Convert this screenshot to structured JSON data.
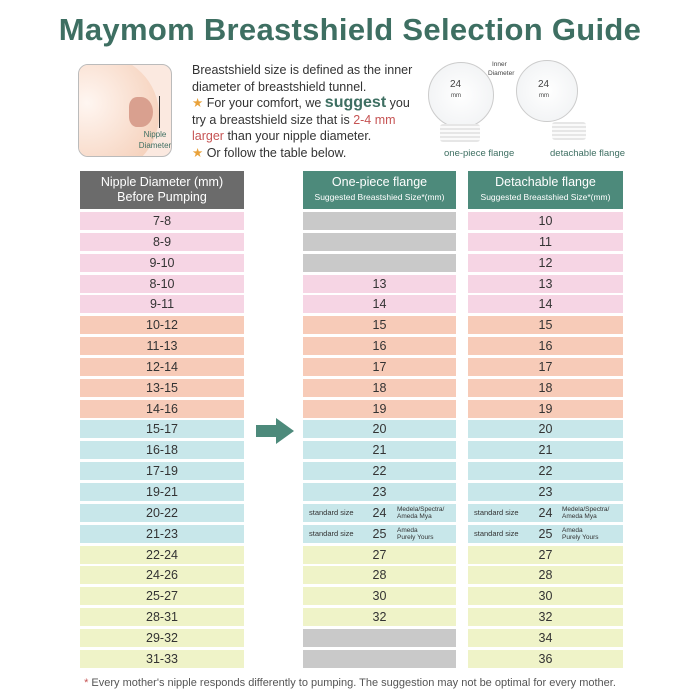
{
  "title": "Maymom Breastshield Selection Guide",
  "illustration": {
    "label_line1": "Nipple",
    "label_line2": "Diameter"
  },
  "intro": {
    "line1": "Breastshield size is defined as the inner diameter of breastshield tunnel.",
    "tip1_pre": "For your comfort, we ",
    "tip1_highlight": "suggest",
    "tip1_mid": " you try a breastshield size that is ",
    "tip1_red": "2-4 mm larger",
    "tip1_post": " than your nipple diameter.",
    "tip2": "Or follow the table below."
  },
  "flanges": {
    "inner_label_1": "Inner",
    "inner_label_2": "Diameter",
    "size": "24",
    "unit": "mm",
    "one_piece": "one-piece flange",
    "detachable": "detachable flange"
  },
  "headers": {
    "nipple_1": "Nipple Diameter (mm)",
    "nipple_2": "Before Pumping",
    "one_piece_1": "One-piece flange",
    "one_piece_2": "Suggested Breastshied Size*(mm)",
    "detachable_1": "Detachable flange",
    "detachable_2": "Suggested Breastshied Size*(mm)"
  },
  "colors": {
    "pink": "#f6d5e4",
    "salmon": "#f7cbb8",
    "teal": "#c8e7ea",
    "yellow": "#eff3c8",
    "gray": "#c9c9c9",
    "header_teal": "#4d8a7b",
    "header_gray": "#6b6b6b",
    "title": "#3e6f62"
  },
  "rows": [
    {
      "nipple": "7-8",
      "one": null,
      "det": "10",
      "c": "pink"
    },
    {
      "nipple": "8-9",
      "one": null,
      "det": "11",
      "c": "pink"
    },
    {
      "nipple": "9-10",
      "one": null,
      "det": "12",
      "c": "pink"
    },
    {
      "nipple": "8-10",
      "one": "13",
      "det": "13",
      "c": "pink"
    },
    {
      "nipple": "9-11",
      "one": "14",
      "det": "14",
      "c": "pink"
    },
    {
      "nipple": "10-12",
      "one": "15",
      "det": "15",
      "c": "salmon"
    },
    {
      "nipple": "11-13",
      "one": "16",
      "det": "16",
      "c": "salmon"
    },
    {
      "nipple": "12-14",
      "one": "17",
      "det": "17",
      "c": "salmon"
    },
    {
      "nipple": "13-15",
      "one": "18",
      "det": "18",
      "c": "salmon"
    },
    {
      "nipple": "14-16",
      "one": "19",
      "det": "19",
      "c": "salmon"
    },
    {
      "nipple": "15-17",
      "one": "20",
      "det": "20",
      "c": "teal"
    },
    {
      "nipple": "16-18",
      "one": "21",
      "det": "21",
      "c": "teal"
    },
    {
      "nipple": "17-19",
      "one": "22",
      "det": "22",
      "c": "teal"
    },
    {
      "nipple": "19-21",
      "one": "23",
      "det": "23",
      "c": "teal"
    },
    {
      "nipple": "20-22",
      "one": "24",
      "det": "24",
      "c": "teal",
      "std": "standard size",
      "brand1": "Medela/Spectra/",
      "brand2": "Ameda Mya"
    },
    {
      "nipple": "21-23",
      "one": "25",
      "det": "25",
      "c": "teal",
      "std": "standard size",
      "brand1": "Ameda",
      "brand2": "Purely Yours"
    },
    {
      "nipple": "22-24",
      "one": "27",
      "det": "27",
      "c": "yellow"
    },
    {
      "nipple": "24-26",
      "one": "28",
      "det": "28",
      "c": "yellow"
    },
    {
      "nipple": "25-27",
      "one": "30",
      "det": "30",
      "c": "yellow"
    },
    {
      "nipple": "28-31",
      "one": "32",
      "det": "32",
      "c": "yellow"
    },
    {
      "nipple": "29-32",
      "one": null,
      "det": "34",
      "c": "yellow"
    },
    {
      "nipple": "31-33",
      "one": null,
      "det": "36",
      "c": "yellow"
    }
  ],
  "footnote": {
    "asterisk": "*",
    "text": " Every mother's nipple responds differently to pumping. The suggestion may not be optimal for every mother."
  }
}
